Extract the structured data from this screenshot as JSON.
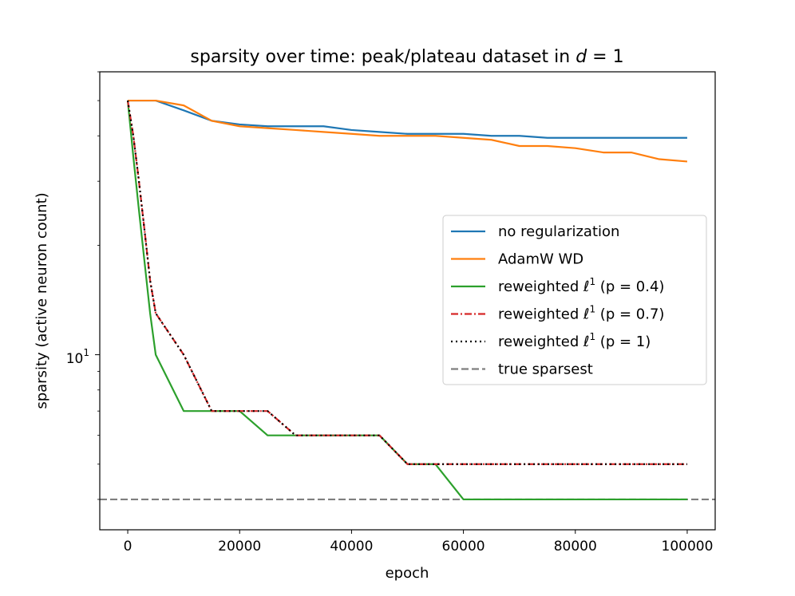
{
  "chart_data": {
    "type": "line",
    "title": "sparsity over time: peak/plateau dataset in d = 1",
    "title_parts": {
      "prefix": "sparsity over time: peak/plateau dataset in ",
      "var": "d",
      "eq": " = 1"
    },
    "xlabel": "epoch",
    "ylabel": "sparsity (active neuron count)",
    "xlim": [
      -5000,
      105000
    ],
    "ylim": [
      3.3,
      60
    ],
    "yscale": "log",
    "xticks": [
      0,
      20000,
      40000,
      60000,
      80000,
      100000
    ],
    "xtick_labels": [
      "0",
      "20000",
      "40000",
      "60000",
      "80000",
      "100000"
    ],
    "ytick_major": {
      "value": 10,
      "base": "10",
      "exp": "1"
    },
    "legend_location": "center-right",
    "series": [
      {
        "name": "no regularization",
        "legend_label": "no regularization",
        "color": "#1f77b4",
        "dash": "solid",
        "x": [
          0,
          5000,
          10000,
          15000,
          20000,
          25000,
          30000,
          35000,
          40000,
          45000,
          50000,
          55000,
          60000,
          65000,
          70000,
          75000,
          80000,
          85000,
          90000,
          95000,
          100000
        ],
        "y": [
          50,
          50,
          47,
          44,
          43,
          42.5,
          42.5,
          42.5,
          41.5,
          41,
          40.5,
          40.5,
          40.5,
          40,
          40,
          39.5,
          39.5,
          39.5,
          39.5,
          39.5,
          39.5
        ]
      },
      {
        "name": "AdamW WD",
        "legend_label": "AdamW WD",
        "color": "#ff7f0e",
        "dash": "solid",
        "x": [
          0,
          5000,
          10000,
          15000,
          20000,
          25000,
          30000,
          35000,
          40000,
          45000,
          50000,
          55000,
          60000,
          65000,
          70000,
          75000,
          80000,
          85000,
          90000,
          95000,
          100000
        ],
        "y": [
          50,
          50,
          48.5,
          44,
          42.5,
          42,
          41.5,
          41,
          40.5,
          40,
          40,
          40,
          39.5,
          39,
          37.5,
          37.5,
          37,
          36,
          36,
          34.5,
          34
        ]
      },
      {
        "name": "reweighted l1 (p = 0.4)",
        "legend_label": {
          "pre": "reweighted ",
          "ell": "ℓ",
          "sup": "1",
          "post": " (p = 0.4)"
        },
        "color": "#2ca02c",
        "dash": "solid",
        "x": [
          0,
          1000,
          2000,
          3000,
          4000,
          5000,
          10000,
          15000,
          20000,
          25000,
          30000,
          35000,
          40000,
          45000,
          50000,
          55000,
          60000,
          65000,
          70000,
          75000,
          80000,
          85000,
          90000,
          95000,
          100000
        ],
        "y": [
          50,
          35,
          25,
          18,
          13,
          10,
          7,
          7,
          7,
          6,
          6,
          6,
          6,
          6,
          5,
          5,
          4,
          4,
          4,
          4,
          4,
          4,
          4,
          4,
          4
        ]
      },
      {
        "name": "reweighted l1 (p = 0.7)",
        "legend_label": {
          "pre": "reweighted ",
          "ell": "ℓ",
          "sup": "1",
          "post": " (p = 0.7)"
        },
        "color": "#d62728",
        "dash": "dashdot",
        "x": [
          0,
          1000,
          2000,
          3000,
          4000,
          5000,
          10000,
          15000,
          20000,
          25000,
          30000,
          35000,
          40000,
          45000,
          50000,
          55000,
          60000,
          65000,
          70000,
          75000,
          80000,
          85000,
          90000,
          95000,
          100000
        ],
        "y": [
          50,
          40,
          30,
          22,
          16,
          13,
          10,
          7,
          7,
          7,
          6,
          6,
          6,
          6,
          5,
          5,
          5,
          5,
          5,
          5,
          5,
          5,
          5,
          5,
          5
        ]
      },
      {
        "name": "reweighted l1 (p = 1)",
        "legend_label": {
          "pre": "reweighted ",
          "ell": "ℓ",
          "sup": "1",
          "post": " (p = 1)"
        },
        "color": "#000000",
        "dash": "dotted",
        "x": [
          0,
          1000,
          2000,
          3000,
          4000,
          5000,
          10000,
          15000,
          20000,
          25000,
          30000,
          35000,
          40000,
          45000,
          50000,
          55000,
          60000,
          65000,
          70000,
          75000,
          80000,
          85000,
          90000,
          95000,
          100000
        ],
        "y": [
          50,
          40,
          30,
          22,
          16,
          13,
          10,
          7,
          7,
          7,
          6,
          6,
          6,
          6,
          5,
          5,
          5,
          5,
          5,
          5,
          5,
          5,
          5,
          5,
          5
        ]
      }
    ],
    "reference_lines": [
      {
        "name": "true sparsest",
        "legend_label": "true sparsest",
        "color": "#7f7f7f",
        "dash": "dashed",
        "y": 4
      }
    ]
  }
}
